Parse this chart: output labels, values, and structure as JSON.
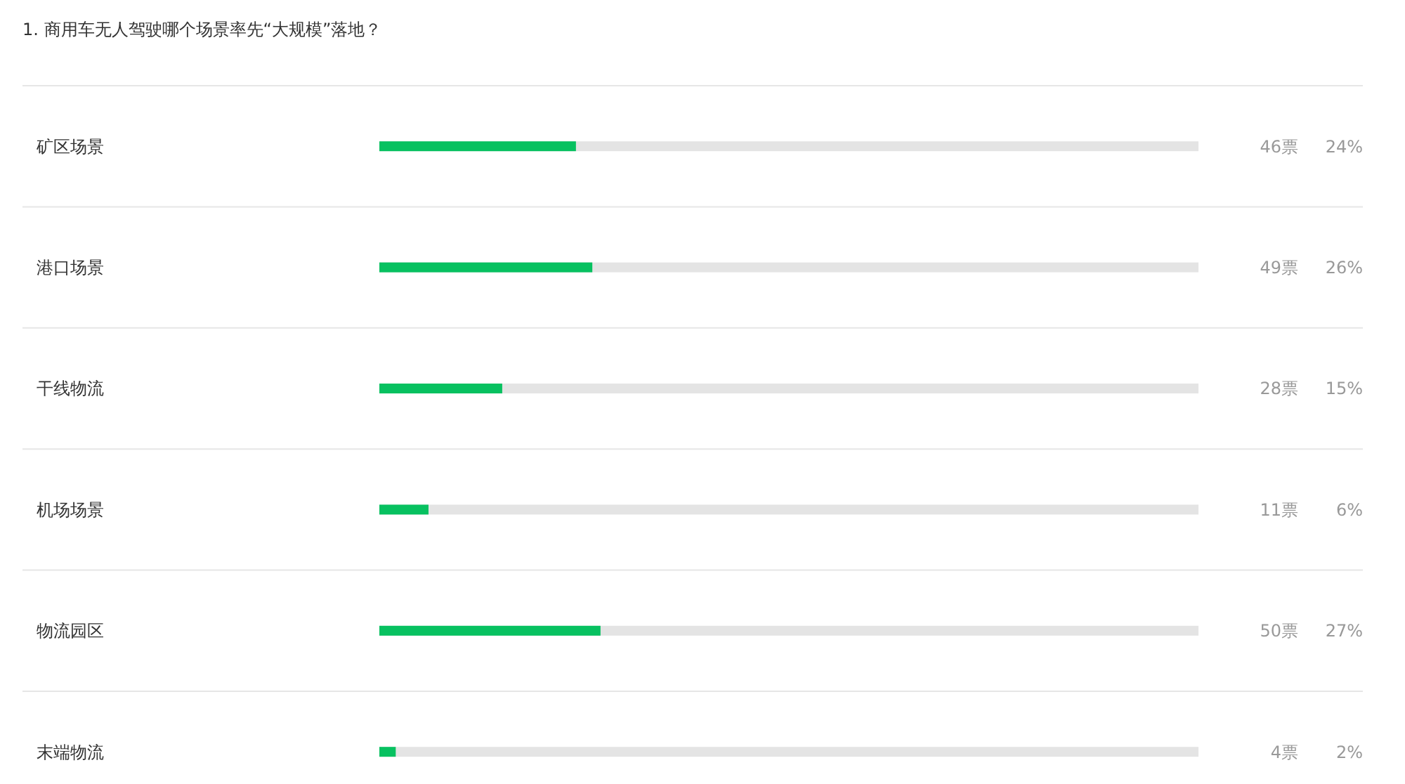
{
  "chart_data": {
    "type": "bar",
    "orientation": "horizontal",
    "title": "1. 商用车无人驾驶哪个场景率先“大规模”落地？",
    "categories": [
      "矿区场景",
      "港口场景",
      "干线物流",
      "机场场景",
      "物流园区",
      "末端物流"
    ],
    "values": [
      24,
      26,
      15,
      6,
      27,
      2
    ],
    "value_labels": [
      "24%",
      "26%",
      "15%",
      "6%",
      "27%",
      "2%"
    ],
    "annotations": [
      "46票",
      "49票",
      "28票",
      "11票",
      "50票",
      "4票"
    ],
    "color": "#07c160",
    "xlim": [
      0,
      100
    ],
    "grid": true
  }
}
